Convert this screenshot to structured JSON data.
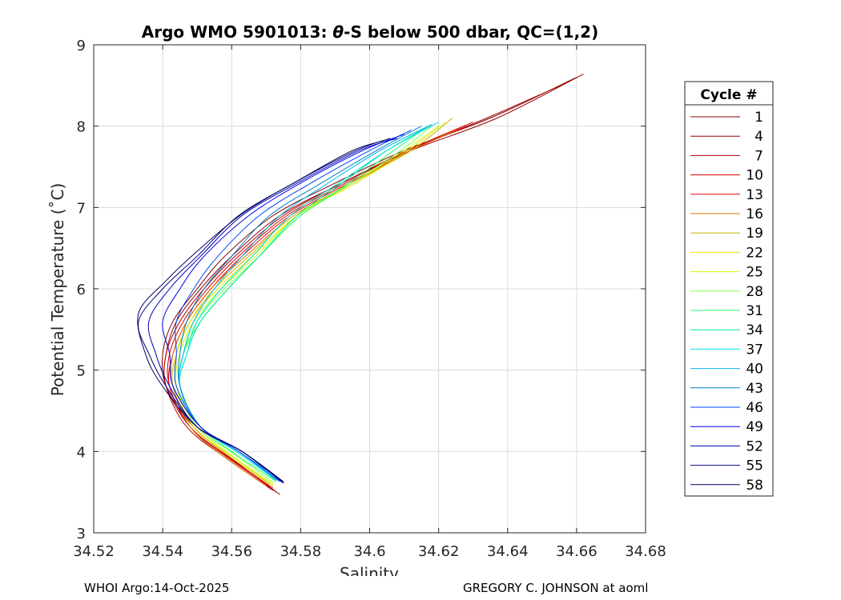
{
  "chart_data": {
    "type": "line",
    "title_prefix": "Argo WMO 5901013: ",
    "title_theta": "θ",
    "title_suffix": "-S below 500 dbar,  QC=(1,2)",
    "xlabel": "Salinity",
    "ylabel": "Potential Temperature (˚C)",
    "xlim": [
      34.52,
      34.68
    ],
    "ylim": [
      3,
      9
    ],
    "xticks": [
      34.52,
      34.54,
      34.56,
      34.58,
      34.6,
      34.62,
      34.64,
      34.66,
      34.68
    ],
    "xtick_labels": [
      "34.52",
      "34.54",
      "34.56",
      "34.58",
      "34.6",
      "34.62",
      "34.64",
      "34.66",
      "34.68"
    ],
    "yticks": [
      3,
      4,
      5,
      6,
      7,
      8,
      9
    ],
    "ytick_labels": [
      "3",
      "4",
      "5",
      "6",
      "7",
      "8",
      "9"
    ],
    "grid": true,
    "legend_title": "Cycle #",
    "legend_position": "outside-right",
    "series": [
      {
        "name": "1",
        "color": "#800000",
        "profile": [
          [
            34.573,
            3.5
          ],
          [
            34.56,
            3.9
          ],
          [
            34.548,
            4.3
          ],
          [
            34.541,
            4.8
          ],
          [
            34.54,
            5.2
          ],
          [
            34.543,
            5.6
          ],
          [
            34.55,
            6.0
          ],
          [
            34.558,
            6.4
          ],
          [
            34.572,
            6.9
          ],
          [
            34.59,
            7.3
          ],
          [
            34.61,
            7.7
          ],
          [
            34.635,
            8.1
          ],
          [
            34.66,
            8.6
          ]
        ]
      },
      {
        "name": "4",
        "color": "#940000",
        "profile": [
          [
            34.574,
            3.47
          ],
          [
            34.561,
            3.88
          ],
          [
            34.549,
            4.3
          ],
          [
            34.541,
            4.8
          ],
          [
            34.541,
            5.2
          ],
          [
            34.544,
            5.6
          ],
          [
            34.551,
            6.0
          ],
          [
            34.56,
            6.4
          ],
          [
            34.574,
            6.9
          ],
          [
            34.592,
            7.3
          ],
          [
            34.612,
            7.7
          ],
          [
            34.637,
            8.1
          ],
          [
            34.662,
            8.64
          ]
        ]
      },
      {
        "name": "7",
        "color": "#b00000",
        "profile": [
          [
            34.572,
            3.52
          ],
          [
            34.559,
            3.9
          ],
          [
            34.547,
            4.3
          ],
          [
            34.541,
            4.8
          ],
          [
            34.541,
            5.2
          ],
          [
            34.545,
            5.6
          ],
          [
            34.552,
            6.0
          ],
          [
            34.561,
            6.4
          ],
          [
            34.575,
            6.9
          ],
          [
            34.592,
            7.3
          ],
          [
            34.611,
            7.7
          ],
          [
            34.634,
            8.1
          ],
          [
            34.658,
            8.55
          ]
        ]
      },
      {
        "name": "10",
        "color": "#d40000",
        "profile": [
          [
            34.572,
            3.55
          ],
          [
            34.56,
            3.9
          ],
          [
            34.548,
            4.3
          ],
          [
            34.542,
            4.8
          ],
          [
            34.542,
            5.2
          ],
          [
            34.546,
            5.6
          ],
          [
            34.553,
            6.0
          ],
          [
            34.562,
            6.4
          ],
          [
            34.576,
            6.9
          ],
          [
            34.593,
            7.3
          ],
          [
            34.611,
            7.7
          ],
          [
            34.63,
            8.05
          ]
        ]
      },
      {
        "name": "13",
        "color": "#f00000",
        "profile": [
          [
            34.571,
            3.57
          ],
          [
            34.559,
            3.92
          ],
          [
            34.548,
            4.3
          ],
          [
            34.542,
            4.8
          ],
          [
            34.543,
            5.2
          ],
          [
            34.547,
            5.6
          ],
          [
            34.554,
            6.0
          ],
          [
            34.563,
            6.4
          ],
          [
            34.577,
            6.9
          ],
          [
            34.594,
            7.3
          ],
          [
            34.612,
            7.7
          ],
          [
            34.628,
            8.0
          ]
        ]
      },
      {
        "name": "16",
        "color": "#d47a00",
        "profile": [
          [
            34.57,
            3.58
          ],
          [
            34.558,
            3.93
          ],
          [
            34.548,
            4.3
          ],
          [
            34.543,
            4.8
          ],
          [
            34.543,
            5.2
          ],
          [
            34.547,
            5.6
          ],
          [
            34.554,
            6.0
          ],
          [
            34.564,
            6.4
          ],
          [
            34.578,
            6.9
          ],
          [
            34.595,
            7.3
          ],
          [
            34.612,
            7.7
          ],
          [
            34.625,
            7.95
          ]
        ]
      },
      {
        "name": "19",
        "color": "#c8b400",
        "profile": [
          [
            34.571,
            3.6
          ],
          [
            34.559,
            3.95
          ],
          [
            34.549,
            4.3
          ],
          [
            34.543,
            4.8
          ],
          [
            34.544,
            5.2
          ],
          [
            34.548,
            5.6
          ],
          [
            34.555,
            6.0
          ],
          [
            34.565,
            6.4
          ],
          [
            34.578,
            6.9
          ],
          [
            34.595,
            7.3
          ],
          [
            34.612,
            7.7
          ],
          [
            34.624,
            8.1
          ]
        ]
      },
      {
        "name": "22",
        "color": "#e6e600",
        "profile": [
          [
            34.572,
            3.58
          ],
          [
            34.56,
            3.94
          ],
          [
            34.549,
            4.3
          ],
          [
            34.544,
            4.8
          ],
          [
            34.544,
            5.2
          ],
          [
            34.548,
            5.6
          ],
          [
            34.556,
            6.0
          ],
          [
            34.566,
            6.4
          ],
          [
            34.579,
            6.9
          ],
          [
            34.596,
            7.3
          ],
          [
            34.611,
            7.7
          ],
          [
            34.622,
            8.05
          ]
        ]
      },
      {
        "name": "25",
        "color": "#c8ff00",
        "profile": [
          [
            34.572,
            3.6
          ],
          [
            34.56,
            3.95
          ],
          [
            34.55,
            4.3
          ],
          [
            34.544,
            4.8
          ],
          [
            34.545,
            5.2
          ],
          [
            34.549,
            5.6
          ],
          [
            34.557,
            6.0
          ],
          [
            34.567,
            6.4
          ],
          [
            34.579,
            6.9
          ],
          [
            34.595,
            7.3
          ],
          [
            34.61,
            7.7
          ],
          [
            34.62,
            8.0
          ]
        ]
      },
      {
        "name": "28",
        "color": "#7dff48",
        "profile": [
          [
            34.572,
            3.62
          ],
          [
            34.561,
            3.96
          ],
          [
            34.55,
            4.3
          ],
          [
            34.545,
            4.8
          ],
          [
            34.546,
            5.2
          ],
          [
            34.55,
            5.6
          ],
          [
            34.558,
            6.0
          ],
          [
            34.568,
            6.4
          ],
          [
            34.58,
            6.9
          ],
          [
            34.595,
            7.3
          ],
          [
            34.609,
            7.7
          ],
          [
            34.618,
            8.0
          ]
        ]
      },
      {
        "name": "31",
        "color": "#2aff6a",
        "profile": [
          [
            34.573,
            3.63
          ],
          [
            34.561,
            3.97
          ],
          [
            34.551,
            4.3
          ],
          [
            34.545,
            4.8
          ],
          [
            34.546,
            5.2
          ],
          [
            34.551,
            5.6
          ],
          [
            34.559,
            6.0
          ],
          [
            34.568,
            6.4
          ],
          [
            34.58,
            6.9
          ],
          [
            34.594,
            7.3
          ],
          [
            34.607,
            7.7
          ],
          [
            34.617,
            8.0
          ]
        ]
      },
      {
        "name": "34",
        "color": "#00e6a0",
        "profile": [
          [
            34.573,
            3.64
          ],
          [
            34.562,
            3.98
          ],
          [
            34.551,
            4.3
          ],
          [
            34.545,
            4.8
          ],
          [
            34.547,
            5.2
          ],
          [
            34.551,
            5.6
          ],
          [
            34.559,
            6.0
          ],
          [
            34.568,
            6.4
          ],
          [
            34.579,
            6.9
          ],
          [
            34.592,
            7.3
          ],
          [
            34.605,
            7.7
          ],
          [
            34.618,
            8.02
          ]
        ]
      },
      {
        "name": "37",
        "color": "#00e6e6",
        "profile": [
          [
            34.573,
            3.65
          ],
          [
            34.562,
            3.98
          ],
          [
            34.551,
            4.3
          ],
          [
            34.545,
            4.8
          ],
          [
            34.547,
            5.2
          ],
          [
            34.55,
            5.6
          ],
          [
            34.557,
            6.0
          ],
          [
            34.566,
            6.4
          ],
          [
            34.577,
            6.9
          ],
          [
            34.591,
            7.3
          ],
          [
            34.605,
            7.7
          ],
          [
            34.62,
            8.05
          ]
        ]
      },
      {
        "name": "40",
        "color": "#00b4f0",
        "profile": [
          [
            34.573,
            3.66
          ],
          [
            34.562,
            4.0
          ],
          [
            34.551,
            4.3
          ],
          [
            34.545,
            4.8
          ],
          [
            34.546,
            5.2
          ],
          [
            34.549,
            5.6
          ],
          [
            34.555,
            6.0
          ],
          [
            34.563,
            6.4
          ],
          [
            34.574,
            6.9
          ],
          [
            34.588,
            7.3
          ],
          [
            34.603,
            7.7
          ],
          [
            34.618,
            8.02
          ]
        ]
      },
      {
        "name": "43",
        "color": "#0082c8",
        "profile": [
          [
            34.574,
            3.66
          ],
          [
            34.562,
            4.0
          ],
          [
            34.551,
            4.3
          ],
          [
            34.545,
            4.8
          ],
          [
            34.545,
            5.2
          ],
          [
            34.547,
            5.6
          ],
          [
            34.552,
            6.0
          ],
          [
            34.56,
            6.4
          ],
          [
            34.571,
            6.9
          ],
          [
            34.586,
            7.3
          ],
          [
            34.602,
            7.7
          ],
          [
            34.615,
            8.0
          ]
        ]
      },
      {
        "name": "46",
        "color": "#0046ff",
        "profile": [
          [
            34.574,
            3.63
          ],
          [
            34.562,
            4.0
          ],
          [
            34.551,
            4.3
          ],
          [
            34.544,
            4.8
          ],
          [
            34.544,
            5.2
          ],
          [
            34.544,
            5.6
          ],
          [
            34.549,
            6.0
          ],
          [
            34.556,
            6.4
          ],
          [
            34.568,
            6.9
          ],
          [
            34.583,
            7.3
          ],
          [
            34.6,
            7.7
          ],
          [
            34.612,
            7.95
          ]
        ]
      },
      {
        "name": "49",
        "color": "#0000e6",
        "profile": [
          [
            34.575,
            3.62
          ],
          [
            34.563,
            4.0
          ],
          [
            34.551,
            4.3
          ],
          [
            34.543,
            4.8
          ],
          [
            34.542,
            5.2
          ],
          [
            34.54,
            5.6
          ],
          [
            34.545,
            6.0
          ],
          [
            34.552,
            6.4
          ],
          [
            34.565,
            6.9
          ],
          [
            34.58,
            7.3
          ],
          [
            34.598,
            7.7
          ],
          [
            34.61,
            7.9
          ]
        ]
      },
      {
        "name": "52",
        "color": "#0000b4",
        "profile": [
          [
            34.575,
            3.61
          ],
          [
            34.563,
            4.0
          ],
          [
            34.55,
            4.3
          ],
          [
            34.542,
            4.8
          ],
          [
            34.538,
            5.2
          ],
          [
            34.536,
            5.6
          ],
          [
            34.542,
            6.0
          ],
          [
            34.551,
            6.4
          ],
          [
            34.563,
            6.9
          ],
          [
            34.579,
            7.3
          ],
          [
            34.597,
            7.7
          ],
          [
            34.608,
            7.85
          ]
        ]
      },
      {
        "name": "55",
        "color": "#000082",
        "profile": [
          [
            34.575,
            3.62
          ],
          [
            34.563,
            4.0
          ],
          [
            34.55,
            4.3
          ],
          [
            34.541,
            4.8
          ],
          [
            34.536,
            5.2
          ],
          [
            34.533,
            5.6
          ],
          [
            34.54,
            6.0
          ],
          [
            34.55,
            6.4
          ],
          [
            34.562,
            6.9
          ],
          [
            34.578,
            7.3
          ],
          [
            34.596,
            7.7
          ],
          [
            34.606,
            7.85
          ]
        ]
      },
      {
        "name": "58",
        "color": "#00005a",
        "profile": [
          [
            34.575,
            3.63
          ],
          [
            34.563,
            4.0
          ],
          [
            34.55,
            4.3
          ],
          [
            34.54,
            4.8
          ],
          [
            34.535,
            5.2
          ],
          [
            34.533,
            5.7
          ],
          [
            34.541,
            6.1
          ],
          [
            34.551,
            6.5
          ],
          [
            34.564,
            6.95
          ],
          [
            34.58,
            7.35
          ],
          [
            34.595,
            7.7
          ],
          [
            34.604,
            7.82
          ]
        ]
      }
    ]
  },
  "footer": {
    "left": "WHOI Argo:14-Oct-2025",
    "right": "GREGORY C. JOHNSON at aoml"
  }
}
